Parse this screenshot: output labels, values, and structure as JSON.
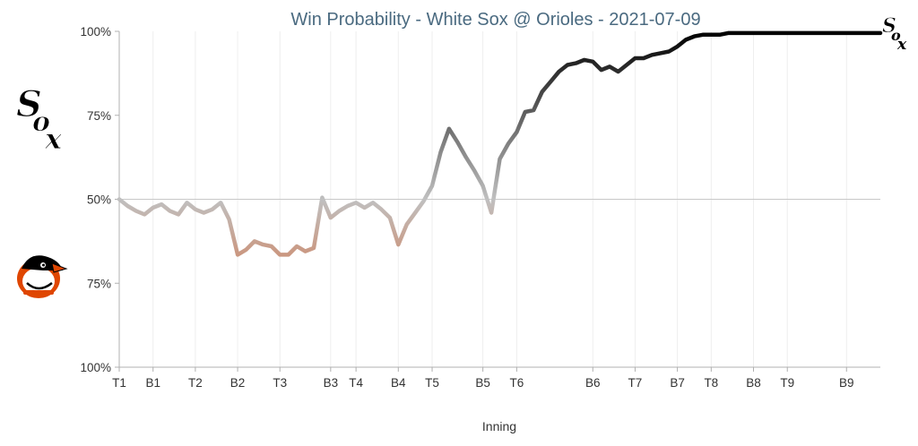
{
  "chart_data": {
    "type": "line",
    "title": "Win Probability - White Sox @ Orioles - 2021-07-09",
    "xlabel": "Inning",
    "ylabel": "",
    "x_tick_labels": [
      "T1",
      "B1",
      "T2",
      "B2",
      "T3",
      "B3",
      "T4",
      "B4",
      "T5",
      "B5",
      "T6",
      "B6",
      "T7",
      "B7",
      "T8",
      "B8",
      "T9",
      "B9"
    ],
    "y_tick_labels": [
      "100%",
      "75%",
      "50%",
      "75%",
      "100%"
    ],
    "ylim": [
      -100,
      100
    ],
    "x_range": [
      0,
      90
    ],
    "x_tick_positions": [
      0,
      4,
      9,
      14,
      19,
      25,
      28,
      33,
      37,
      43,
      47,
      56,
      61,
      66,
      70,
      75,
      79,
      86
    ],
    "grid": "vertical",
    "series": [
      {
        "x": [
          0,
          1,
          2,
          3,
          4,
          5,
          6,
          7,
          8,
          9,
          10,
          11,
          12,
          13,
          14,
          15,
          16,
          17,
          18,
          19,
          20,
          21,
          22,
          23,
          24,
          25,
          26,
          27,
          28,
          29,
          30,
          31,
          32,
          33,
          34,
          35,
          36,
          37,
          38,
          39,
          40,
          41,
          42,
          43,
          44,
          45,
          46,
          47,
          48,
          49,
          50,
          51,
          52,
          53,
          54,
          55,
          56,
          57,
          58,
          59,
          60,
          61,
          62,
          63,
          64,
          65,
          66,
          67,
          68,
          69,
          70,
          71,
          72,
          73,
          74,
          75,
          76,
          77,
          78,
          79,
          80,
          81,
          82,
          83,
          84,
          85,
          86,
          87,
          88,
          89,
          90
        ],
        "values": [
          0,
          -4,
          -7,
          -9,
          -5,
          -3,
          -7,
          -9,
          -2,
          -6,
          -8,
          -6,
          -2,
          -12,
          -33,
          -30,
          -25,
          -27,
          -28,
          -33,
          -33,
          -28,
          -31,
          -29,
          1,
          -11,
          -7,
          -4,
          -2,
          -5,
          -2,
          -6,
          -11,
          -27,
          -15,
          -8,
          -1,
          8,
          28,
          42,
          34,
          25,
          17,
          8,
          -8,
          24,
          33,
          40,
          52,
          53,
          64,
          70,
          76,
          80,
          81,
          83,
          82,
          77,
          79,
          76,
          80,
          84,
          84,
          86,
          87,
          88,
          91,
          95,
          97,
          98,
          98,
          98,
          99,
          99,
          99,
          99,
          99,
          99,
          99,
          99,
          99,
          99,
          99,
          99,
          99,
          99,
          99,
          99,
          99,
          99,
          99
        ],
        "color_favor_home": "#df4601",
        "color_even": "#c0c0c0",
        "color_favor_away": "#000000"
      }
    ],
    "reference_line_value": 0
  },
  "logos": {
    "away_logo_icon": "white-sox-logo",
    "home_logo_icon": "orioles-logo",
    "end_logo_icon": "white-sox-logo"
  },
  "colors": {
    "title": "#4a6a80",
    "axis": "#b0b0b0",
    "grid": "#eeeeee",
    "orioles_orange": "#df4601"
  }
}
